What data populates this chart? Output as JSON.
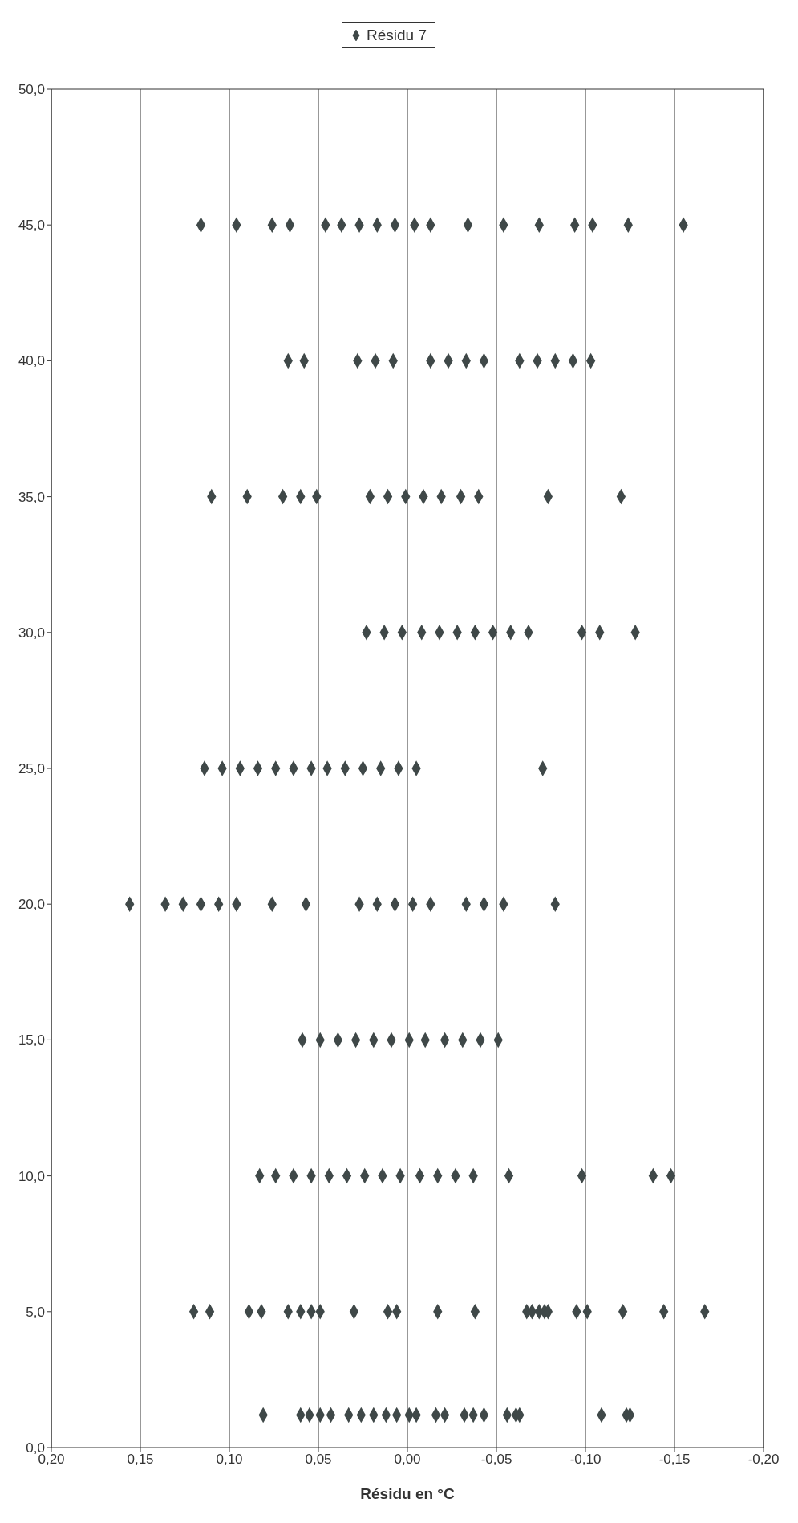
{
  "chart_data": {
    "type": "scatter",
    "xlabel": "Résidu en °C",
    "legend": "top",
    "grid": "x",
    "marker": "diamond",
    "xlim": [
      0.2,
      -0.2
    ],
    "xticks": [
      {
        "value": 0.2,
        "label": "0,20"
      },
      {
        "value": 0.15,
        "label": "0,15"
      },
      {
        "value": 0.1,
        "label": "0,10"
      },
      {
        "value": 0.05,
        "label": "0,05"
      },
      {
        "value": 0,
        "label": "0,00"
      },
      {
        "value": -0.05,
        "label": "-0,05"
      },
      {
        "value": -0.1,
        "label": "-0,10"
      },
      {
        "value": -0.15,
        "label": "-0,15"
      },
      {
        "value": -0.2,
        "label": "-0,20"
      }
    ],
    "ylim": [
      0,
      50
    ],
    "yticks": [
      {
        "value": 0,
        "label": "0,0"
      },
      {
        "value": 5,
        "label": "5,0"
      },
      {
        "value": 10,
        "label": "10,0"
      },
      {
        "value": 15,
        "label": "15,0"
      },
      {
        "value": 20,
        "label": "20,0"
      },
      {
        "value": 25,
        "label": "25,0"
      },
      {
        "value": 30,
        "label": "30,0"
      },
      {
        "value": 35,
        "label": "35,0"
      },
      {
        "value": 40,
        "label": "40,0"
      },
      {
        "value": 45,
        "label": "45,0"
      },
      {
        "value": 50,
        "label": "50,0"
      }
    ],
    "series": [
      {
        "name": "Résidu 7",
        "color": "#3f4848",
        "x": [
          0.081,
          0.06,
          0.055,
          0.049,
          0.043,
          0.033,
          0.026,
          0.019,
          0.012,
          0.006,
          -0.001,
          -0.005,
          -0.016,
          -0.021,
          -0.032,
          -0.037,
          -0.043,
          -0.056,
          -0.061,
          -0.063,
          -0.109,
          -0.123,
          -0.125,
          0.12,
          0.111,
          0.089,
          0.082,
          0.067,
          0.06,
          0.054,
          0.049,
          0.03,
          0.011,
          0.006,
          -0.017,
          -0.038,
          -0.067,
          -0.07,
          -0.074,
          -0.077,
          -0.079,
          -0.095,
          -0.101,
          -0.121,
          -0.144,
          -0.167,
          0.083,
          0.074,
          0.064,
          0.054,
          0.044,
          0.034,
          0.024,
          0.014,
          0.004,
          -0.007,
          -0.017,
          -0.027,
          -0.037,
          -0.057,
          -0.098,
          -0.138,
          -0.148,
          0.059,
          0.049,
          0.039,
          0.029,
          0.019,
          0.009,
          -0.001,
          -0.01,
          -0.021,
          -0.031,
          -0.041,
          -0.051,
          0.156,
          0.136,
          0.126,
          0.116,
          0.106,
          0.096,
          0.076,
          0.057,
          0.027,
          0.017,
          0.007,
          -0.003,
          -0.013,
          -0.033,
          -0.043,
          -0.054,
          -0.083,
          0.114,
          0.104,
          0.094,
          0.084,
          0.074,
          0.064,
          0.054,
          0.045,
          0.035,
          0.025,
          0.015,
          0.005,
          -0.005,
          -0.076,
          0.023,
          0.013,
          0.003,
          -0.008,
          -0.018,
          -0.028,
          -0.038,
          -0.048,
          -0.058,
          -0.068,
          -0.098,
          -0.108,
          -0.128,
          0.11,
          0.09,
          0.07,
          0.06,
          0.051,
          0.021,
          0.011,
          0.001,
          -0.009,
          -0.019,
          -0.03,
          -0.04,
          -0.079,
          -0.12,
          0.067,
          0.058,
          0.028,
          0.018,
          0.008,
          -0.013,
          -0.023,
          -0.033,
          -0.043,
          -0.063,
          -0.073,
          -0.083,
          -0.093,
          -0.103,
          0.116,
          0.096,
          0.076,
          0.066,
          0.046,
          0.037,
          0.027,
          0.017,
          0.007,
          -0.004,
          -0.013,
          -0.034,
          -0.054,
          -0.074,
          -0.094,
          -0.104,
          -0.124,
          -0.155
        ],
        "values": [
          1.2,
          1.2,
          1.2,
          1.2,
          1.2,
          1.2,
          1.2,
          1.2,
          1.2,
          1.2,
          1.2,
          1.2,
          1.2,
          1.2,
          1.2,
          1.2,
          1.2,
          1.2,
          1.2,
          1.2,
          1.2,
          1.2,
          1.2,
          5,
          5,
          5,
          5,
          5,
          5,
          5,
          5,
          5,
          5,
          5,
          5,
          5,
          5,
          5,
          5,
          5,
          5,
          5,
          5,
          5,
          5,
          5,
          10,
          10,
          10,
          10,
          10,
          10,
          10,
          10,
          10,
          10,
          10,
          10,
          10,
          10,
          10,
          10,
          10,
          15,
          15,
          15,
          15,
          15,
          15,
          15,
          15,
          15,
          15,
          15,
          15,
          20,
          20,
          20,
          20,
          20,
          20,
          20,
          20,
          20,
          20,
          20,
          20,
          20,
          20,
          20,
          20,
          20,
          25,
          25,
          25,
          25,
          25,
          25,
          25,
          25,
          25,
          25,
          25,
          25,
          25,
          25,
          30,
          30,
          30,
          30,
          30,
          30,
          30,
          30,
          30,
          30,
          30,
          30,
          30,
          35,
          35,
          35,
          35,
          35,
          35,
          35,
          35,
          35,
          35,
          35,
          35,
          35,
          35,
          40,
          40,
          40,
          40,
          40,
          40,
          40,
          40,
          40,
          40,
          40,
          40,
          40,
          40,
          45,
          45,
          45,
          45,
          45,
          45,
          45,
          45,
          45,
          45,
          45,
          45,
          45,
          45,
          45,
          45,
          45,
          45
        ]
      }
    ]
  }
}
